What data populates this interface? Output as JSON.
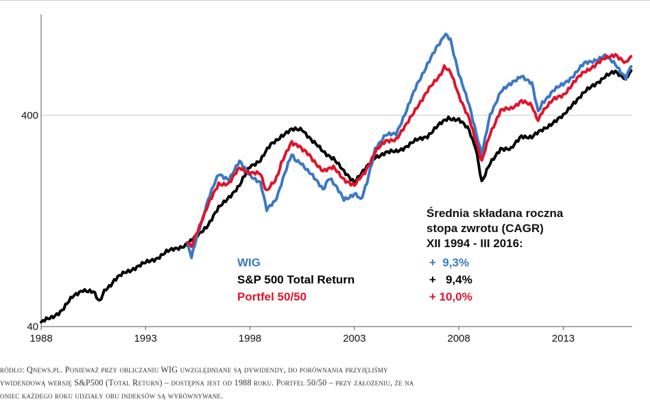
{
  "chart_data": {
    "type": "line",
    "y_scale": "log",
    "ylim": [
      40,
      1200
    ],
    "xlim": [
      1988,
      2016.3
    ],
    "y_ticks": [
      40,
      400
    ],
    "y_tick_labels": [
      "40",
      "400"
    ],
    "x_ticks": [
      1988,
      1993,
      1998,
      2003,
      2008,
      2013
    ],
    "x_tick_labels": [
      "1988",
      "1993",
      "1998",
      "2003",
      "2008",
      "2013"
    ],
    "grid": "horizontal",
    "series": [
      {
        "name": "S&P 500 Total Return",
        "color": "#000000",
        "points": [
          [
            1988,
            42
          ],
          [
            1988.5,
            44
          ],
          [
            1989,
            48
          ],
          [
            1989.5,
            55
          ],
          [
            1990,
            60
          ],
          [
            1990.5,
            58
          ],
          [
            1990.8,
            53
          ],
          [
            1991.1,
            60
          ],
          [
            1991.5,
            66
          ],
          [
            1992,
            72
          ],
          [
            1992.5,
            76
          ],
          [
            1993,
            80
          ],
          [
            1993.5,
            84
          ],
          [
            1994,
            90
          ],
          [
            1994.5,
            94
          ],
          [
            1995,
            98
          ],
          [
            1995.5,
            108
          ],
          [
            1996,
            122
          ],
          [
            1996.5,
            145
          ],
          [
            1997,
            165
          ],
          [
            1997.5,
            185
          ],
          [
            1998,
            230
          ],
          [
            1998.5,
            245
          ],
          [
            1999,
            290
          ],
          [
            1999.5,
            320
          ],
          [
            2000,
            340
          ],
          [
            2000.5,
            345
          ],
          [
            2001,
            300
          ],
          [
            2001.5,
            270
          ],
          [
            2002,
            250
          ],
          [
            2002.5,
            215
          ],
          [
            2003,
            195
          ],
          [
            2003.5,
            220
          ],
          [
            2004,
            255
          ],
          [
            2004.5,
            265
          ],
          [
            2005,
            270
          ],
          [
            2005.5,
            285
          ],
          [
            2006,
            305
          ],
          [
            2006.5,
            320
          ],
          [
            2007,
            355
          ],
          [
            2007.5,
            390
          ],
          [
            2008,
            380
          ],
          [
            2008.5,
            340
          ],
          [
            2008.8,
            280
          ],
          [
            2009.1,
            195
          ],
          [
            2009.5,
            235
          ],
          [
            2010,
            280
          ],
          [
            2010.5,
            275
          ],
          [
            2011,
            320
          ],
          [
            2011.5,
            315
          ],
          [
            2012,
            340
          ],
          [
            2012.5,
            370
          ],
          [
            2013,
            395
          ],
          [
            2013.5,
            460
          ],
          [
            2014,
            510
          ],
          [
            2014.5,
            560
          ],
          [
            2015,
            610
          ],
          [
            2015.5,
            640
          ],
          [
            2016,
            600
          ],
          [
            2016.25,
            650
          ]
        ]
      },
      {
        "name": "WIG",
        "color": "#3a78c6",
        "points": [
          [
            1995,
            100
          ],
          [
            1995.2,
            85
          ],
          [
            1995.5,
            110
          ],
          [
            1996,
            160
          ],
          [
            1996.5,
            210
          ],
          [
            1997,
            200
          ],
          [
            1997.5,
            240
          ],
          [
            1998,
            210
          ],
          [
            1998.5,
            190
          ],
          [
            1998.8,
            145
          ],
          [
            1999.2,
            155
          ],
          [
            1999.5,
            190
          ],
          [
            2000,
            260
          ],
          [
            2000.3,
            240
          ],
          [
            2000.6,
            230
          ],
          [
            2001,
            205
          ],
          [
            2001.5,
            180
          ],
          [
            2001.8,
            200
          ],
          [
            2002,
            190
          ],
          [
            2002.5,
            160
          ],
          [
            2003,
            170
          ],
          [
            2003.3,
            160
          ],
          [
            2003.6,
            190
          ],
          [
            2004,
            280
          ],
          [
            2004.5,
            320
          ],
          [
            2005,
            330
          ],
          [
            2005.5,
            420
          ],
          [
            2006,
            560
          ],
          [
            2006.5,
            700
          ],
          [
            2007,
            850
          ],
          [
            2007.3,
            960
          ],
          [
            2007.6,
            920
          ],
          [
            2008,
            620
          ],
          [
            2008.5,
            450
          ],
          [
            2009.1,
            260
          ],
          [
            2009.5,
            400
          ],
          [
            2010,
            520
          ],
          [
            2010.5,
            560
          ],
          [
            2011,
            620
          ],
          [
            2011.5,
            560
          ],
          [
            2011.8,
            420
          ],
          [
            2012,
            460
          ],
          [
            2012.5,
            520
          ],
          [
            2013,
            560
          ],
          [
            2013.5,
            620
          ],
          [
            2014,
            700
          ],
          [
            2014.5,
            730
          ],
          [
            2015,
            760
          ],
          [
            2015.5,
            700
          ],
          [
            2016,
            600
          ],
          [
            2016.25,
            680
          ]
        ]
      },
      {
        "name": "Portfel 50/50",
        "color": "#e0142a",
        "points": [
          [
            1995,
            100
          ],
          [
            1995.2,
            95
          ],
          [
            1995.5,
            115
          ],
          [
            1996,
            150
          ],
          [
            1996.5,
            190
          ],
          [
            1997,
            190
          ],
          [
            1997.5,
            225
          ],
          [
            1998,
            215
          ],
          [
            1998.5,
            210
          ],
          [
            1998.8,
            175
          ],
          [
            1999.2,
            195
          ],
          [
            1999.5,
            235
          ],
          [
            2000,
            300
          ],
          [
            2000.3,
            285
          ],
          [
            2000.6,
            275
          ],
          [
            2001,
            245
          ],
          [
            2001.5,
            220
          ],
          [
            2002,
            225
          ],
          [
            2002.5,
            200
          ],
          [
            2003,
            185
          ],
          [
            2003.5,
            215
          ],
          [
            2004,
            270
          ],
          [
            2004.5,
            300
          ],
          [
            2005,
            310
          ],
          [
            2005.5,
            360
          ],
          [
            2006,
            440
          ],
          [
            2006.5,
            520
          ],
          [
            2007,
            600
          ],
          [
            2007.3,
            670
          ],
          [
            2007.6,
            650
          ],
          [
            2008,
            490
          ],
          [
            2008.5,
            390
          ],
          [
            2009.1,
            240
          ],
          [
            2009.5,
            330
          ],
          [
            2010,
            420
          ],
          [
            2010.5,
            430
          ],
          [
            2011,
            470
          ],
          [
            2011.5,
            440
          ],
          [
            2011.8,
            380
          ],
          [
            2012,
            420
          ],
          [
            2012.5,
            470
          ],
          [
            2013,
            500
          ],
          [
            2013.5,
            570
          ],
          [
            2014,
            640
          ],
          [
            2014.5,
            690
          ],
          [
            2015,
            740
          ],
          [
            2015.5,
            780
          ],
          [
            2016,
            700
          ],
          [
            2016.25,
            760
          ]
        ]
      }
    ],
    "annotation": {
      "title_lines": [
        "Średnia składana roczna",
        "stopa zwrotu (CAGR)",
        "XII 1994 - III 2016:"
      ],
      "rows": [
        {
          "label": "WIG",
          "value": "+  9,3%",
          "color": "#3a78c6"
        },
        {
          "label": "S&P 500 Total Return",
          "value": "+   9,4%",
          "color": "#000000"
        },
        {
          "label": "Portfel 50/50",
          "value": "+ 10,0%",
          "color": "#e0142a"
        }
      ]
    }
  },
  "source_lines": [
    "ródło: Qnews.pl. Ponieważ przy obliczaniu WIG uwzględniane są dywidendy, do porównania przyjęliśmy",
    "ywidendową wersję S&P500 (Total Return) – dostępna jest od 1988 roku. Portfel 50/50 – przy założeniu, że na",
    "oniec każdego roku udziały obu indeksów są wyrównywane."
  ]
}
